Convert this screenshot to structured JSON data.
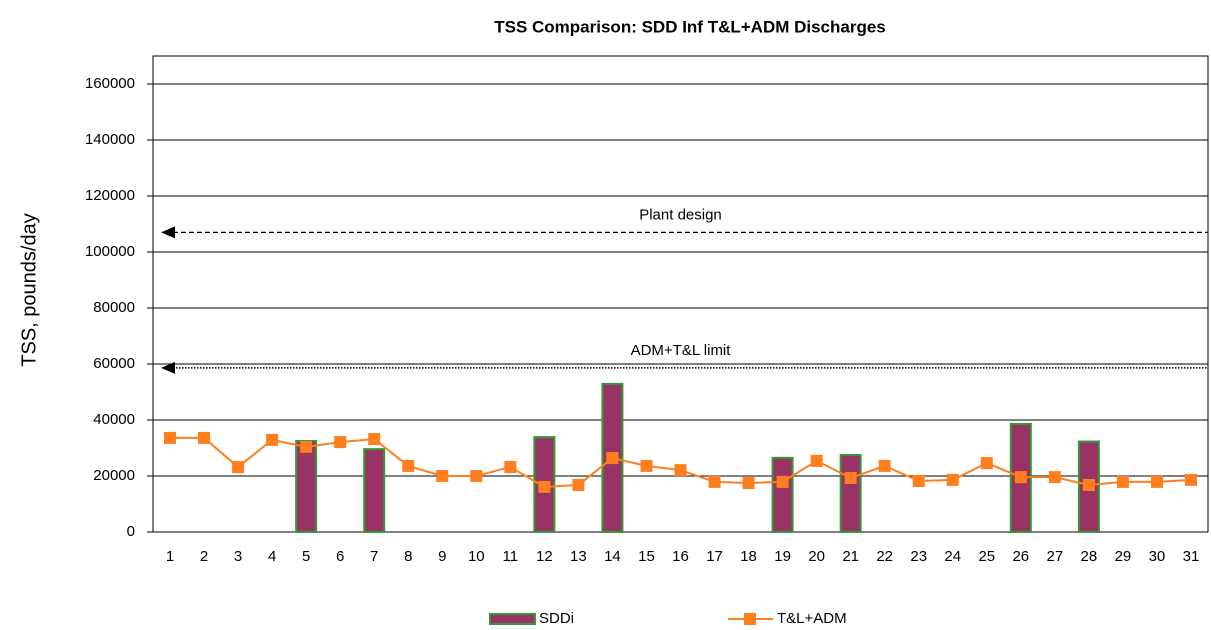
{
  "chart_data": {
    "type": "bar_line",
    "title": "TSS Comparison: SDD Inf T&L+ADM Discharges",
    "y_label": "TSS, pounds/day",
    "categories": [
      "1",
      "2",
      "3",
      "4",
      "5",
      "6",
      "7",
      "8",
      "9",
      "10",
      "11",
      "12",
      "13",
      "14",
      "15",
      "16",
      "17",
      "18",
      "19",
      "20",
      "21",
      "22",
      "23",
      "24",
      "25",
      "26",
      "27",
      "28",
      "29",
      "30",
      "31"
    ],
    "series": [
      {
        "name": "SDDi",
        "type": "bar",
        "color": "#993366",
        "edge_color": "#339933",
        "values": [
          null,
          null,
          null,
          null,
          32500,
          null,
          29600,
          null,
          null,
          null,
          null,
          33900,
          null,
          52900,
          null,
          null,
          null,
          null,
          26500,
          null,
          27500,
          null,
          null,
          null,
          null,
          38600,
          null,
          32300,
          null,
          null,
          null
        ]
      },
      {
        "name": "T&L+ADM",
        "type": "line",
        "color": "#ff7f1e",
        "values": [
          33600,
          33600,
          23200,
          32900,
          30400,
          32100,
          33200,
          23600,
          20000,
          20000,
          23200,
          16100,
          16800,
          26400,
          23600,
          22100,
          17900,
          17500,
          17900,
          25400,
          19300,
          23600,
          18200,
          18600,
          24600,
          19600,
          19600,
          16800,
          17900,
          17900,
          18600
        ]
      }
    ],
    "reference_lines": [
      {
        "label": "Plant design",
        "value": 107000,
        "style": "dashed"
      },
      {
        "label": "ADM+T&L limit",
        "value": 58600,
        "style": "dotted"
      }
    ],
    "ylim": [
      0,
      170000
    ],
    "yticks": [
      0,
      20000,
      40000,
      60000,
      80000,
      100000,
      120000,
      140000,
      160000
    ],
    "grid": true,
    "legend": "bottom"
  }
}
